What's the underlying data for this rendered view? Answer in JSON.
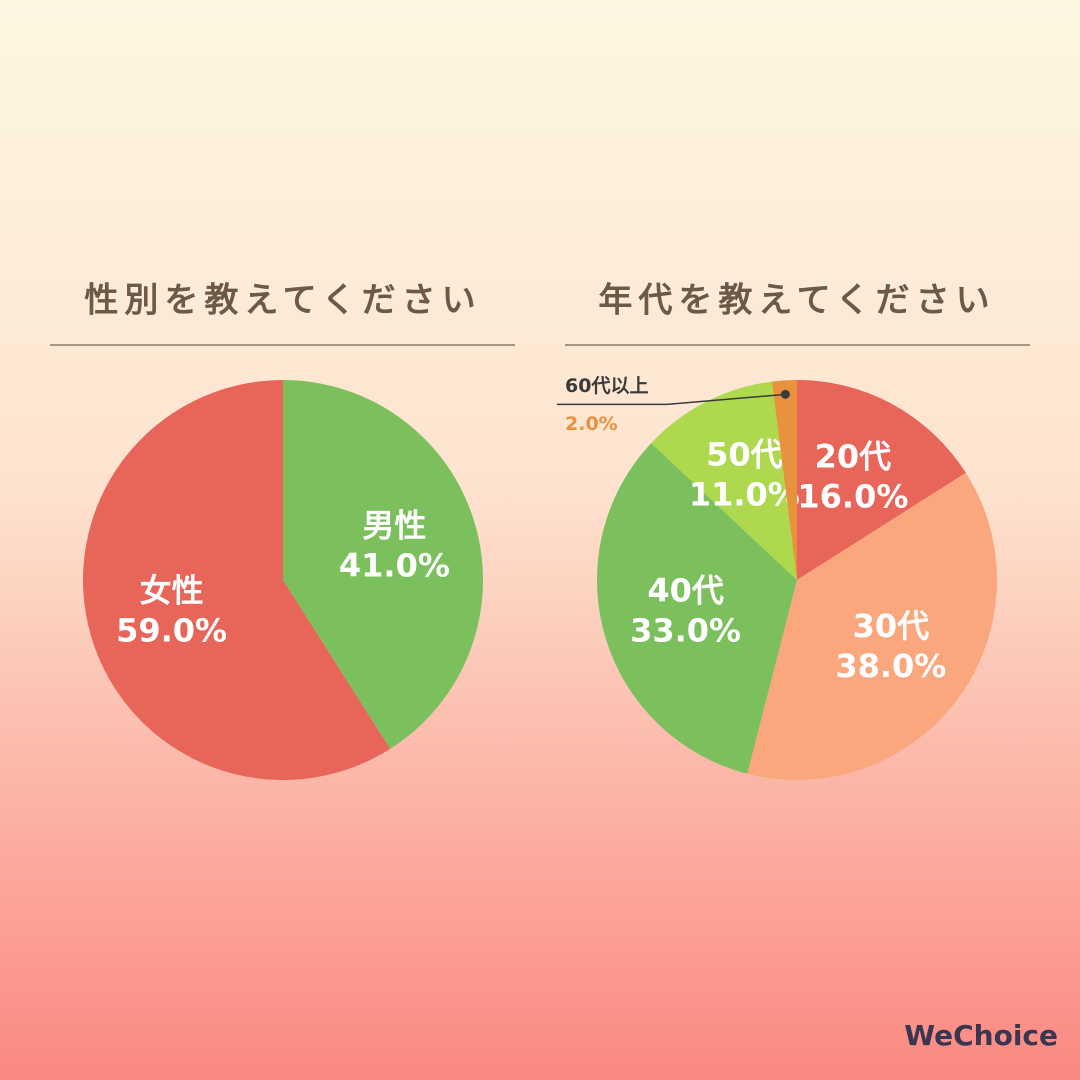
{
  "chart_data": [
    {
      "type": "pie",
      "title": "性別を教えてください",
      "categories": [
        "男性",
        "女性"
      ],
      "values": [
        41,
        59
      ],
      "value_labels": [
        "41.0%",
        "59.0%"
      ],
      "colors": [
        "#7bc05c",
        "#e8655a"
      ]
    },
    {
      "type": "pie",
      "title": "年代を教えてください",
      "categories": [
        "20代",
        "30代",
        "40代",
        "50代",
        "60代以上"
      ],
      "values": [
        16,
        38,
        33,
        11,
        2
      ],
      "value_labels": [
        "16.0%",
        "38.0%",
        "33.0%",
        "11.0%",
        "2.0%"
      ],
      "colors": [
        "#e8655a",
        "#fba77e",
        "#7bc05c",
        "#aed94e",
        "#e8923e"
      ]
    }
  ],
  "brand": "WeChoice"
}
